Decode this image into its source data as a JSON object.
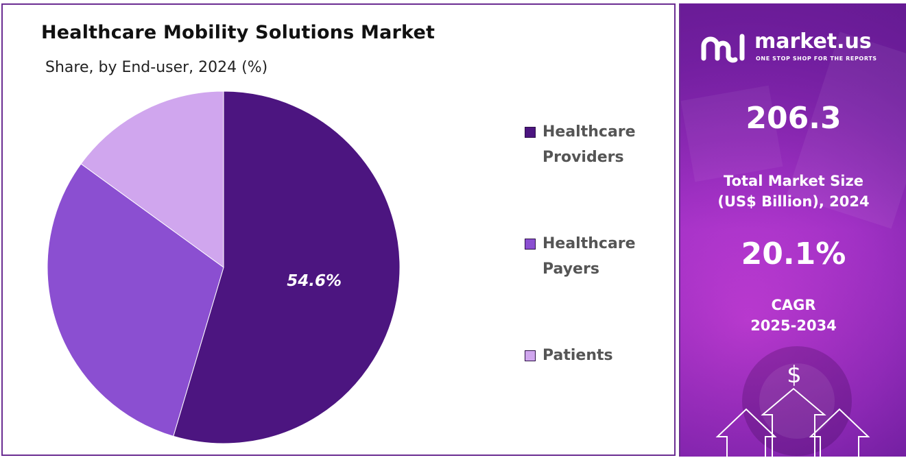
{
  "chart_data": {
    "type": "pie",
    "title": "Healthcare Mobility Solutions Market",
    "subtitle": "Share, by End-user, 2024 (%)",
    "slices": [
      {
        "label": "Healthcare Providers",
        "value": 54.6,
        "color": "#4c1580",
        "display_label": "54.6%"
      },
      {
        "label": "Healthcare Payers",
        "value": 30.4,
        "color": "#8b4fd1",
        "display_label": ""
      },
      {
        "label": "Patients",
        "value": 15.0,
        "color": "#d0a6ee",
        "display_label": ""
      }
    ],
    "legend": [
      {
        "label": "Healthcare Providers",
        "color": "#4c1580"
      },
      {
        "label": "Healthcare Payers",
        "color": "#8b4fd1"
      },
      {
        "label": "Patients",
        "color": "#d0a6ee"
      }
    ],
    "legend_position": "right"
  },
  "sidebar": {
    "brand_name": "market.us",
    "brand_tagline": "ONE STOP SHOP FOR THE REPORTS",
    "logo_icon": "market-us-logo-icon",
    "market_size_value": "206.3",
    "market_size_label_line1": "Total Market Size",
    "market_size_label_line2": "(US$ Billion), 2024",
    "cagr_value": "20.1%",
    "cagr_label_line1": "CAGR",
    "cagr_label_line2": "2025-2034",
    "dollar_symbol": "$",
    "arrow_icon": "up-arrow-icon"
  },
  "colors": {
    "frame_border": "#6a2c91",
    "panel_base": "#9d2fc2"
  }
}
